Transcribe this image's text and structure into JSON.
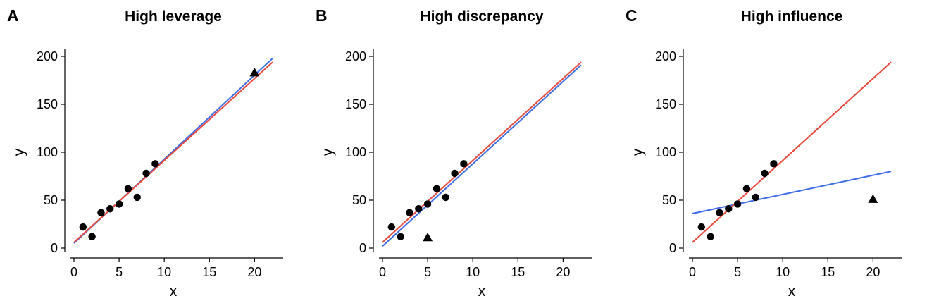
{
  "colors": {
    "red_line": "#e8473a",
    "blue_line": "#3d6ce8",
    "points": "#000000"
  },
  "chart_data": [
    {
      "type": "scatter",
      "panel_letter": "A",
      "title": "High leverage",
      "xlabel": "x",
      "ylabel": "y",
      "xlim": [
        -1,
        22
      ],
      "ylim": [
        -5,
        210
      ],
      "xticks": [
        0,
        5,
        10,
        15,
        20
      ],
      "yticks": [
        0,
        50,
        100,
        150,
        200
      ],
      "points": {
        "x": [
          1,
          2,
          3,
          4,
          5,
          6,
          7,
          8,
          9
        ],
        "y": [
          22,
          12,
          37,
          41,
          46,
          62,
          53,
          78,
          88
        ]
      },
      "outlier": {
        "x": 20,
        "y": 183,
        "marker": "triangle"
      },
      "lines": [
        {
          "color": "blue",
          "x": [
            0,
            22
          ],
          "y": [
            5,
            198
          ]
        },
        {
          "color": "red",
          "x": [
            0,
            22
          ],
          "y": [
            6,
            194
          ]
        }
      ]
    },
    {
      "type": "scatter",
      "panel_letter": "B",
      "title": "High discrepancy",
      "xlabel": "x",
      "ylabel": "y",
      "xlim": [
        -1,
        22
      ],
      "ylim": [
        -5,
        210
      ],
      "xticks": [
        0,
        5,
        10,
        15,
        20
      ],
      "yticks": [
        0,
        50,
        100,
        150,
        200
      ],
      "points": {
        "x": [
          1,
          2,
          3,
          4,
          5,
          6,
          7,
          8,
          9
        ],
        "y": [
          22,
          12,
          37,
          41,
          46,
          62,
          53,
          78,
          88
        ]
      },
      "outlier": {
        "x": 5,
        "y": 11,
        "marker": "triangle"
      },
      "lines": [
        {
          "color": "blue",
          "x": [
            0,
            22
          ],
          "y": [
            2,
            191
          ]
        },
        {
          "color": "red",
          "x": [
            0,
            22
          ],
          "y": [
            6,
            194
          ]
        }
      ]
    },
    {
      "type": "scatter",
      "panel_letter": "C",
      "title": "High influence",
      "xlabel": "x",
      "ylabel": "y",
      "xlim": [
        -1,
        22
      ],
      "ylim": [
        -5,
        210
      ],
      "xticks": [
        0,
        5,
        10,
        15,
        20
      ],
      "yticks": [
        0,
        50,
        100,
        150,
        200
      ],
      "points": {
        "x": [
          1,
          2,
          3,
          4,
          5,
          6,
          7,
          8,
          9
        ],
        "y": [
          22,
          12,
          37,
          41,
          46,
          62,
          53,
          78,
          88
        ]
      },
      "outlier": {
        "x": 20,
        "y": 51,
        "marker": "triangle"
      },
      "lines": [
        {
          "color": "blue",
          "x": [
            0,
            22
          ],
          "y": [
            36,
            80
          ]
        },
        {
          "color": "red",
          "x": [
            0,
            22
          ],
          "y": [
            6,
            194
          ]
        }
      ]
    }
  ]
}
